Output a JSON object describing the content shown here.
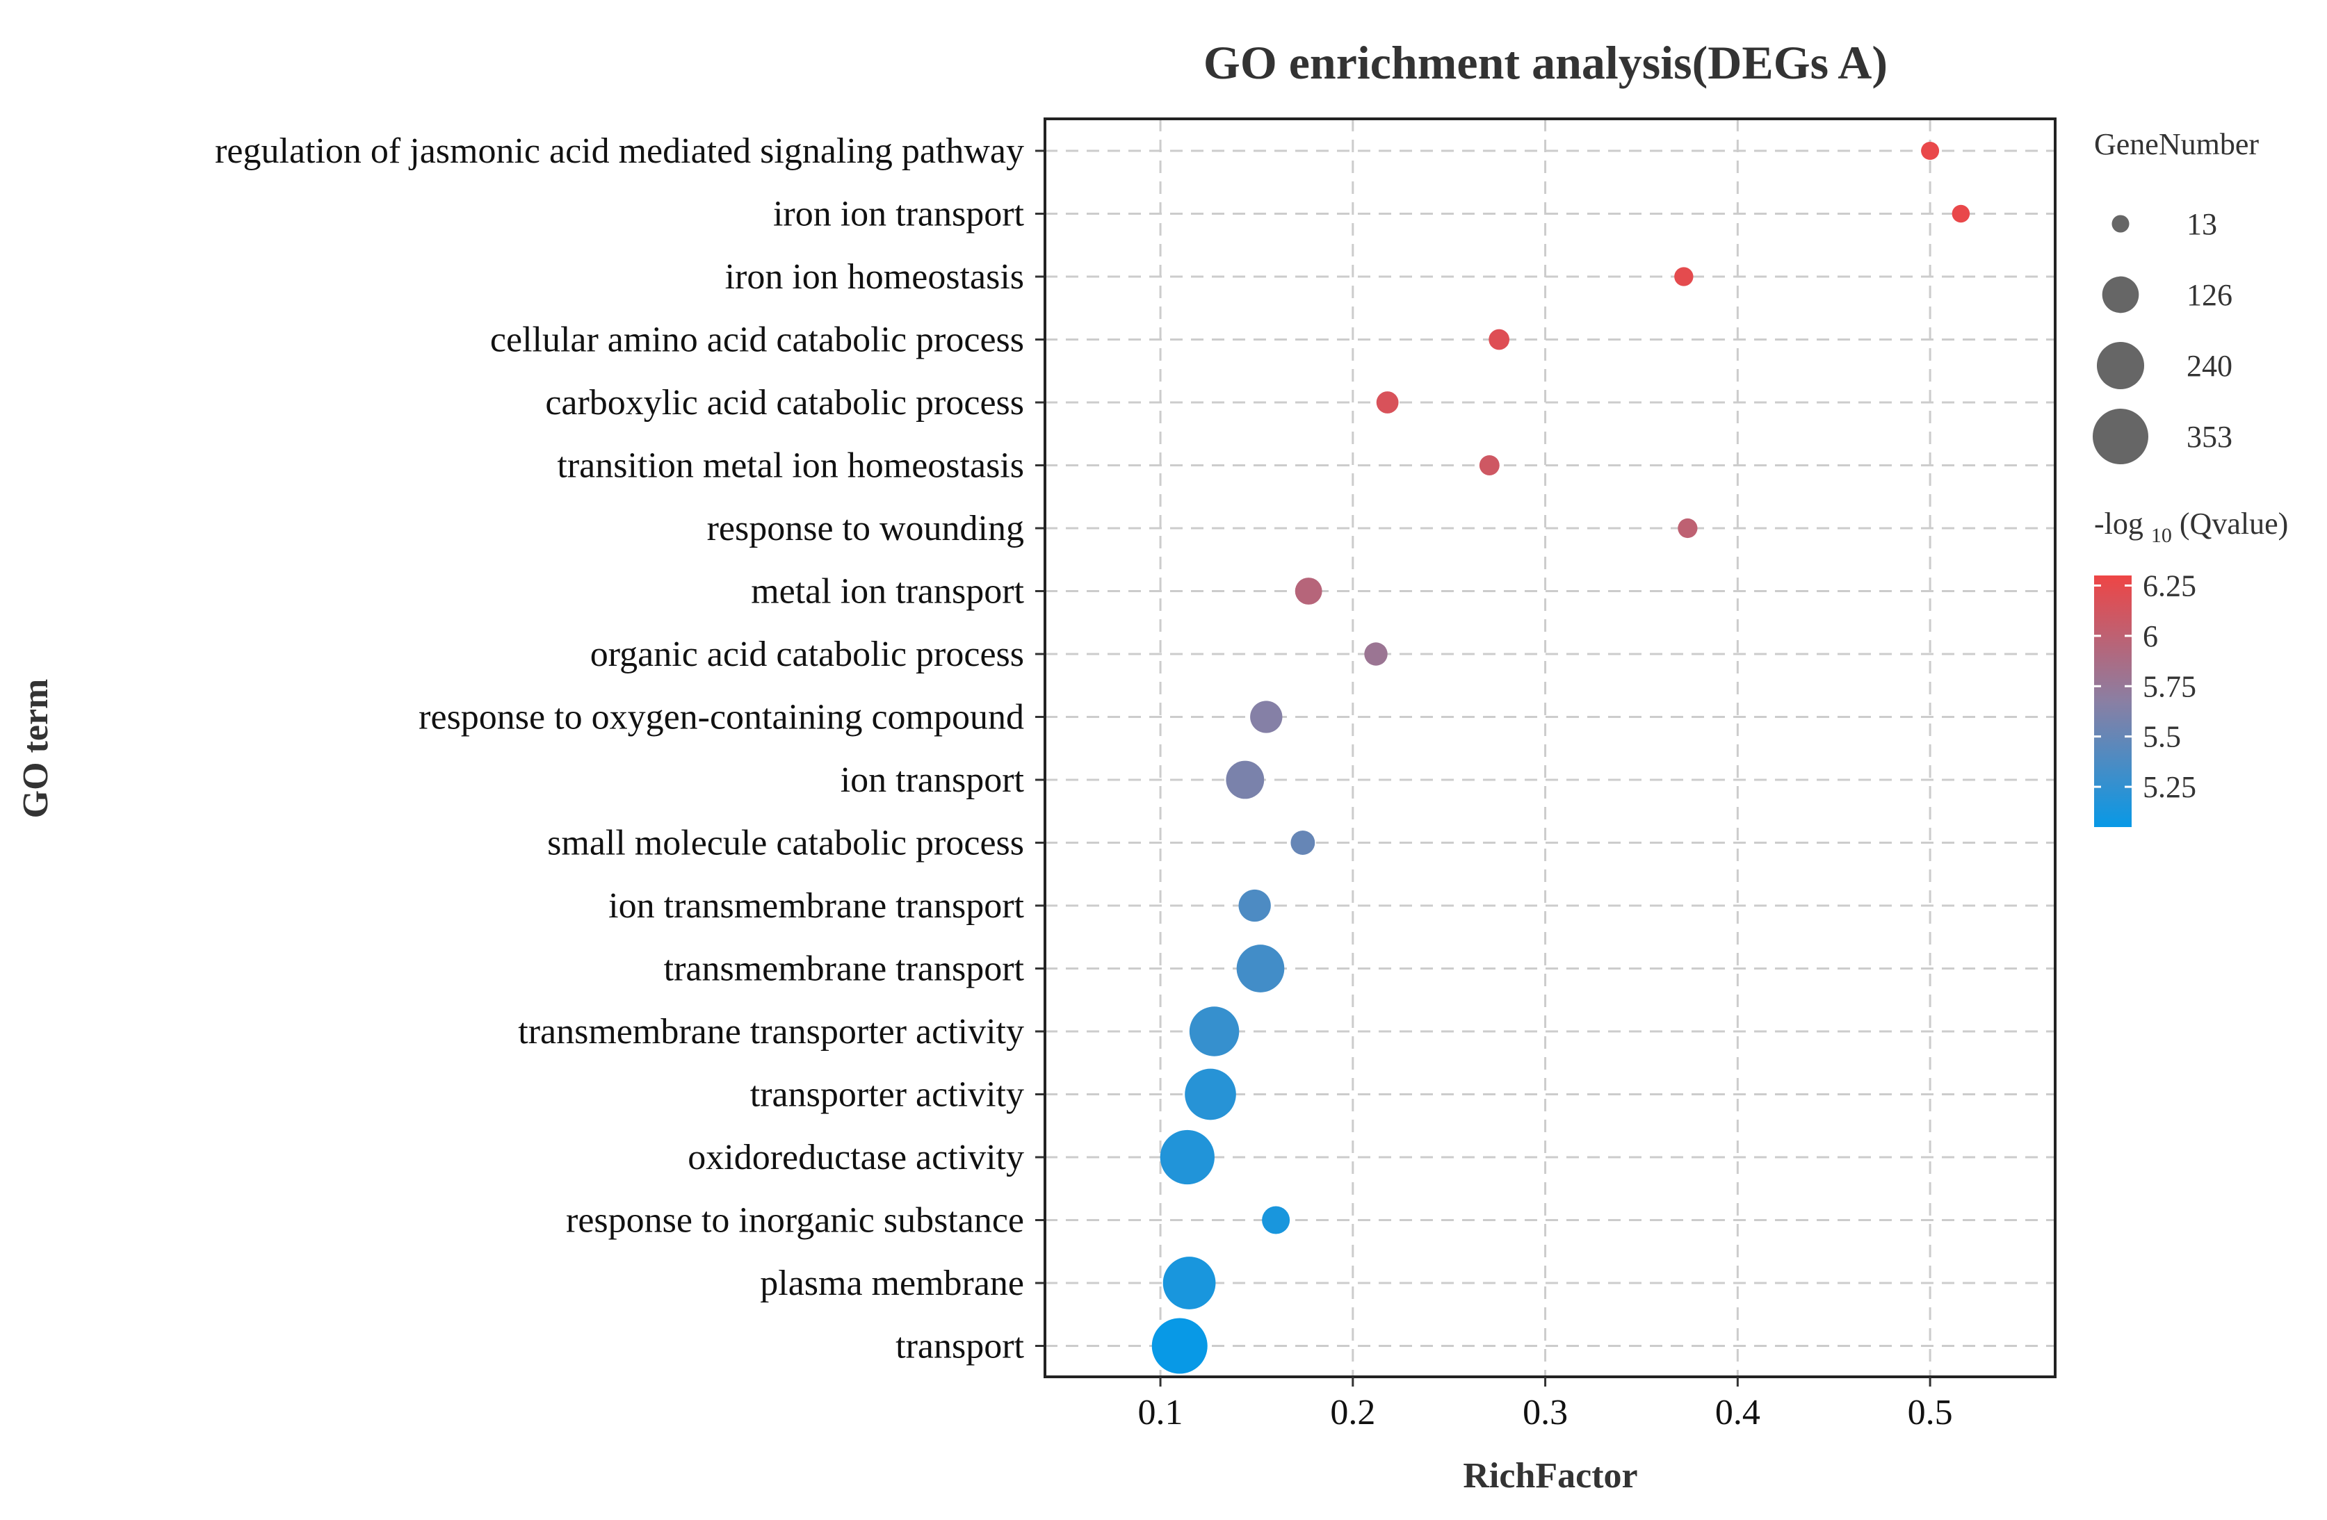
{
  "chart_data": {
    "type": "scatter",
    "title": "GO enrichment analysis(DEGs A)",
    "xlabel": "RichFactor",
    "ylabel": "GO term",
    "xlim": [
      0.04,
      0.565
    ],
    "xticks": [
      0.1,
      0.2,
      0.3,
      0.4,
      0.5
    ],
    "x_tick_labels": [
      "0.1",
      "0.2",
      "0.3",
      "0.4",
      "0.5"
    ],
    "grid": true,
    "terms": [
      {
        "term": "regulation of jasmonic acid mediated signaling pathway",
        "rich_factor": 0.5,
        "gene_number": 15,
        "qvalue_neglog10": 6.27
      },
      {
        "term": "iron ion transport",
        "rich_factor": 0.516,
        "gene_number": 14,
        "qvalue_neglog10": 6.27
      },
      {
        "term": "iron ion homeostasis",
        "rich_factor": 0.372,
        "gene_number": 18,
        "qvalue_neglog10": 6.24
      },
      {
        "term": "cellular amino acid catabolic process",
        "rich_factor": 0.276,
        "gene_number": 24,
        "qvalue_neglog10": 6.2
      },
      {
        "term": "carboxylic acid catabolic process",
        "rich_factor": 0.218,
        "gene_number": 30,
        "qvalue_neglog10": 6.16
      },
      {
        "term": "transition metal ion homeostasis",
        "rich_factor": 0.271,
        "gene_number": 22,
        "qvalue_neglog10": 6.1
      },
      {
        "term": "response to wounding",
        "rich_factor": 0.374,
        "gene_number": 20,
        "qvalue_neglog10": 6.0
      },
      {
        "term": "metal ion transport",
        "rich_factor": 0.177,
        "gene_number": 55,
        "qvalue_neglog10": 5.95
      },
      {
        "term": "organic acid catabolic process",
        "rich_factor": 0.212,
        "gene_number": 35,
        "qvalue_neglog10": 5.78
      },
      {
        "term": "response to oxygen-containing compound",
        "rich_factor": 0.155,
        "gene_number": 90,
        "qvalue_neglog10": 5.65
      },
      {
        "term": "ion transport",
        "rich_factor": 0.144,
        "gene_number": 140,
        "qvalue_neglog10": 5.6
      },
      {
        "term": "small molecule catabolic process",
        "rich_factor": 0.174,
        "gene_number": 40,
        "qvalue_neglog10": 5.5
      },
      {
        "term": "ion transmembrane transport",
        "rich_factor": 0.149,
        "gene_number": 90,
        "qvalue_neglog10": 5.38
      },
      {
        "term": "transmembrane transport",
        "rich_factor": 0.152,
        "gene_number": 245,
        "qvalue_neglog10": 5.33
      },
      {
        "term": "transmembrane transporter activity",
        "rich_factor": 0.128,
        "gene_number": 270,
        "qvalue_neglog10": 5.27
      },
      {
        "term": "transporter activity",
        "rich_factor": 0.126,
        "gene_number": 290,
        "qvalue_neglog10": 5.2
      },
      {
        "term": "oxidoreductase activity",
        "rich_factor": 0.114,
        "gene_number": 335,
        "qvalue_neglog10": 5.17
      },
      {
        "term": "response to inorganic substance",
        "rich_factor": 0.16,
        "gene_number": 60,
        "qvalue_neglog10": 5.13
      },
      {
        "term": "plasma membrane",
        "rich_factor": 0.115,
        "gene_number": 310,
        "qvalue_neglog10": 5.13
      },
      {
        "term": "transport",
        "rich_factor": 0.11,
        "gene_number": 353,
        "qvalue_neglog10": 5.05
      }
    ],
    "size_legend": {
      "title": "GeneNumber",
      "values": [
        13,
        126,
        240,
        353
      ],
      "labels": [
        "13",
        "126",
        "240",
        "353"
      ]
    },
    "color_legend": {
      "title_prefix": "-log",
      "title_subscript": "10",
      "title_suffix": "(Qvalue)",
      "range": [
        5.05,
        6.3
      ],
      "ticks": [
        6.25,
        6,
        5.75,
        5.5,
        5.25
      ],
      "tick_labels": [
        "6.25",
        "6",
        "5.75",
        "5.5",
        "5.25"
      ],
      "low_color": "#0899e6",
      "mid_color": "#8a7fa3",
      "high_color": "#ee4545"
    },
    "legend_position": "right",
    "point_color_neutral": "#666666"
  }
}
